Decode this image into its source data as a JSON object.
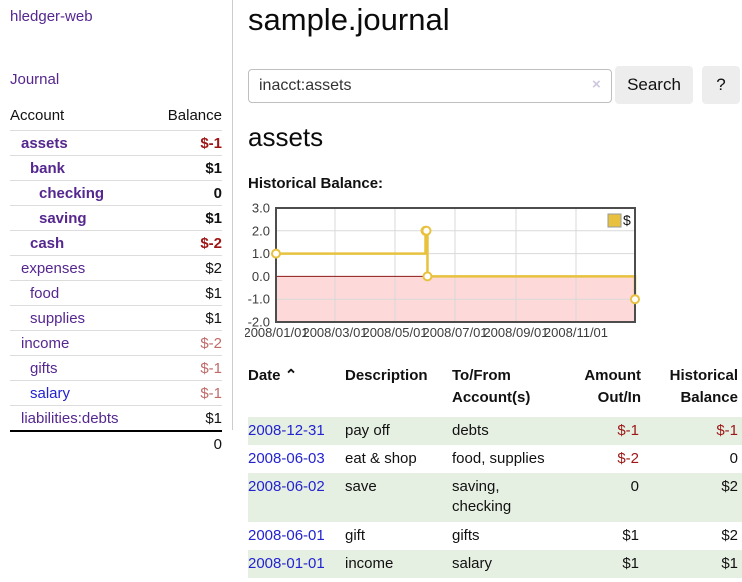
{
  "colors": {
    "accent_purple": "#55278f",
    "link_blue": "#2323d0",
    "negative_strong": "#9c1616",
    "negative_soft": "#c06a68",
    "row_stripe_green": "#e6f0e2",
    "chart_line": "#e8c23e",
    "chart_negative_fill": "#fdd9d9",
    "chart_zero_line": "#8b1a1a",
    "chart_grid": "#d9d9d9",
    "chart_border": "#4d4d4d"
  },
  "sidebar": {
    "app_title": "hledger-web",
    "nav_journal": "Journal",
    "accounts": {
      "col_account": "Account",
      "col_balance": "Balance",
      "rows": [
        {
          "name": "assets",
          "depth": 1,
          "bold": true,
          "balance": "$-1",
          "balance_style": "neg-strong",
          "link_style": "purple"
        },
        {
          "name": "bank",
          "depth": 2,
          "bold": true,
          "balance": "$1",
          "balance_style": "",
          "link_style": "purple"
        },
        {
          "name": "checking",
          "depth": 3,
          "bold": true,
          "balance": "0",
          "balance_style": "",
          "link_style": "purple"
        },
        {
          "name": "saving",
          "depth": 3,
          "bold": true,
          "balance": "$1",
          "balance_style": "",
          "link_style": "purple"
        },
        {
          "name": "cash",
          "depth": 2,
          "bold": true,
          "balance": "$-2",
          "balance_style": "neg-strong",
          "link_style": "purple"
        },
        {
          "name": "expenses",
          "depth": 1,
          "bold": false,
          "balance": "$2",
          "balance_style": "",
          "link_style": "purple"
        },
        {
          "name": "food",
          "depth": 2,
          "bold": false,
          "balance": "$1",
          "balance_style": "",
          "link_style": "purple"
        },
        {
          "name": "supplies",
          "depth": 2,
          "bold": false,
          "balance": "$1",
          "balance_style": "",
          "link_style": "purple"
        },
        {
          "name": "income",
          "depth": 1,
          "bold": false,
          "balance": "$-2",
          "balance_style": "neg-soft",
          "link_style": "purple"
        },
        {
          "name": "gifts",
          "depth": 2,
          "bold": false,
          "balance": "$-1",
          "balance_style": "neg-soft",
          "link_style": "purple"
        },
        {
          "name": "salary",
          "depth": 2,
          "bold": false,
          "balance": "$-1",
          "balance_style": "neg-soft",
          "link_style": "blue"
        },
        {
          "name": "liabilities:debts",
          "depth": 1,
          "bold": false,
          "balance": "$1",
          "balance_style": "",
          "link_style": "purple"
        }
      ],
      "total": "0"
    }
  },
  "main": {
    "title": "sample.journal",
    "search": {
      "value": "inacct:assets",
      "clear_icon": "×",
      "search_button": "Search",
      "help_button": "?"
    },
    "heading": "assets",
    "chart_label": "Historical Balance:"
  },
  "chart_data": {
    "type": "line",
    "title": "Historical Balance:",
    "step": true,
    "series": [
      {
        "name": "$",
        "points": [
          {
            "date": "2008-01-01",
            "value": 1
          },
          {
            "date": "2008-06-01",
            "value": 2
          },
          {
            "date": "2008-06-02",
            "value": 2
          },
          {
            "date": "2008-06-03",
            "value": 0
          },
          {
            "date": "2008-12-31",
            "value": -1
          }
        ]
      }
    ],
    "ylim": [
      -2,
      3
    ],
    "yticks": [
      3.0,
      2.0,
      1.0,
      0.0,
      -1.0,
      -2.0
    ],
    "xticks": [
      "2008/01/01",
      "2008/03/01",
      "2008/05/01",
      "2008/07/01",
      "2008/09/01",
      "2008/11/01"
    ],
    "x_range": [
      "2008-01-01",
      "2008-12-31"
    ],
    "legend": {
      "label": "$",
      "position": "top-right"
    },
    "grid": true,
    "negative_region_shaded": true
  },
  "register": {
    "columns": [
      "Date",
      "Description",
      "To/From Account(s)",
      "Amount Out/In",
      "Historical Balance"
    ],
    "sort_indicator": "⌃",
    "rows": [
      {
        "date": "2008-12-31",
        "description": "pay off",
        "accounts": "debts",
        "accounts_two_lines": false,
        "amount": "$-1",
        "amount_negative": true,
        "balance": "$-1",
        "balance_negative": true
      },
      {
        "date": "2008-06-03",
        "description": "eat & shop",
        "accounts": "food, supplies",
        "accounts_two_lines": false,
        "amount": "$-2",
        "amount_negative": true,
        "balance": "0",
        "balance_negative": false
      },
      {
        "date": "2008-06-02",
        "description": "save",
        "accounts": "saving, checking",
        "accounts_two_lines": true,
        "amount": "0",
        "amount_negative": false,
        "balance": "$2",
        "balance_negative": false
      },
      {
        "date": "2008-06-01",
        "description": "gift",
        "accounts": "gifts",
        "accounts_two_lines": false,
        "amount": "$1",
        "amount_negative": false,
        "balance": "$2",
        "balance_negative": false
      },
      {
        "date": "2008-01-01",
        "description": "income",
        "accounts": "salary",
        "accounts_two_lines": false,
        "amount": "$1",
        "amount_negative": false,
        "balance": "$1",
        "balance_negative": false
      }
    ]
  }
}
